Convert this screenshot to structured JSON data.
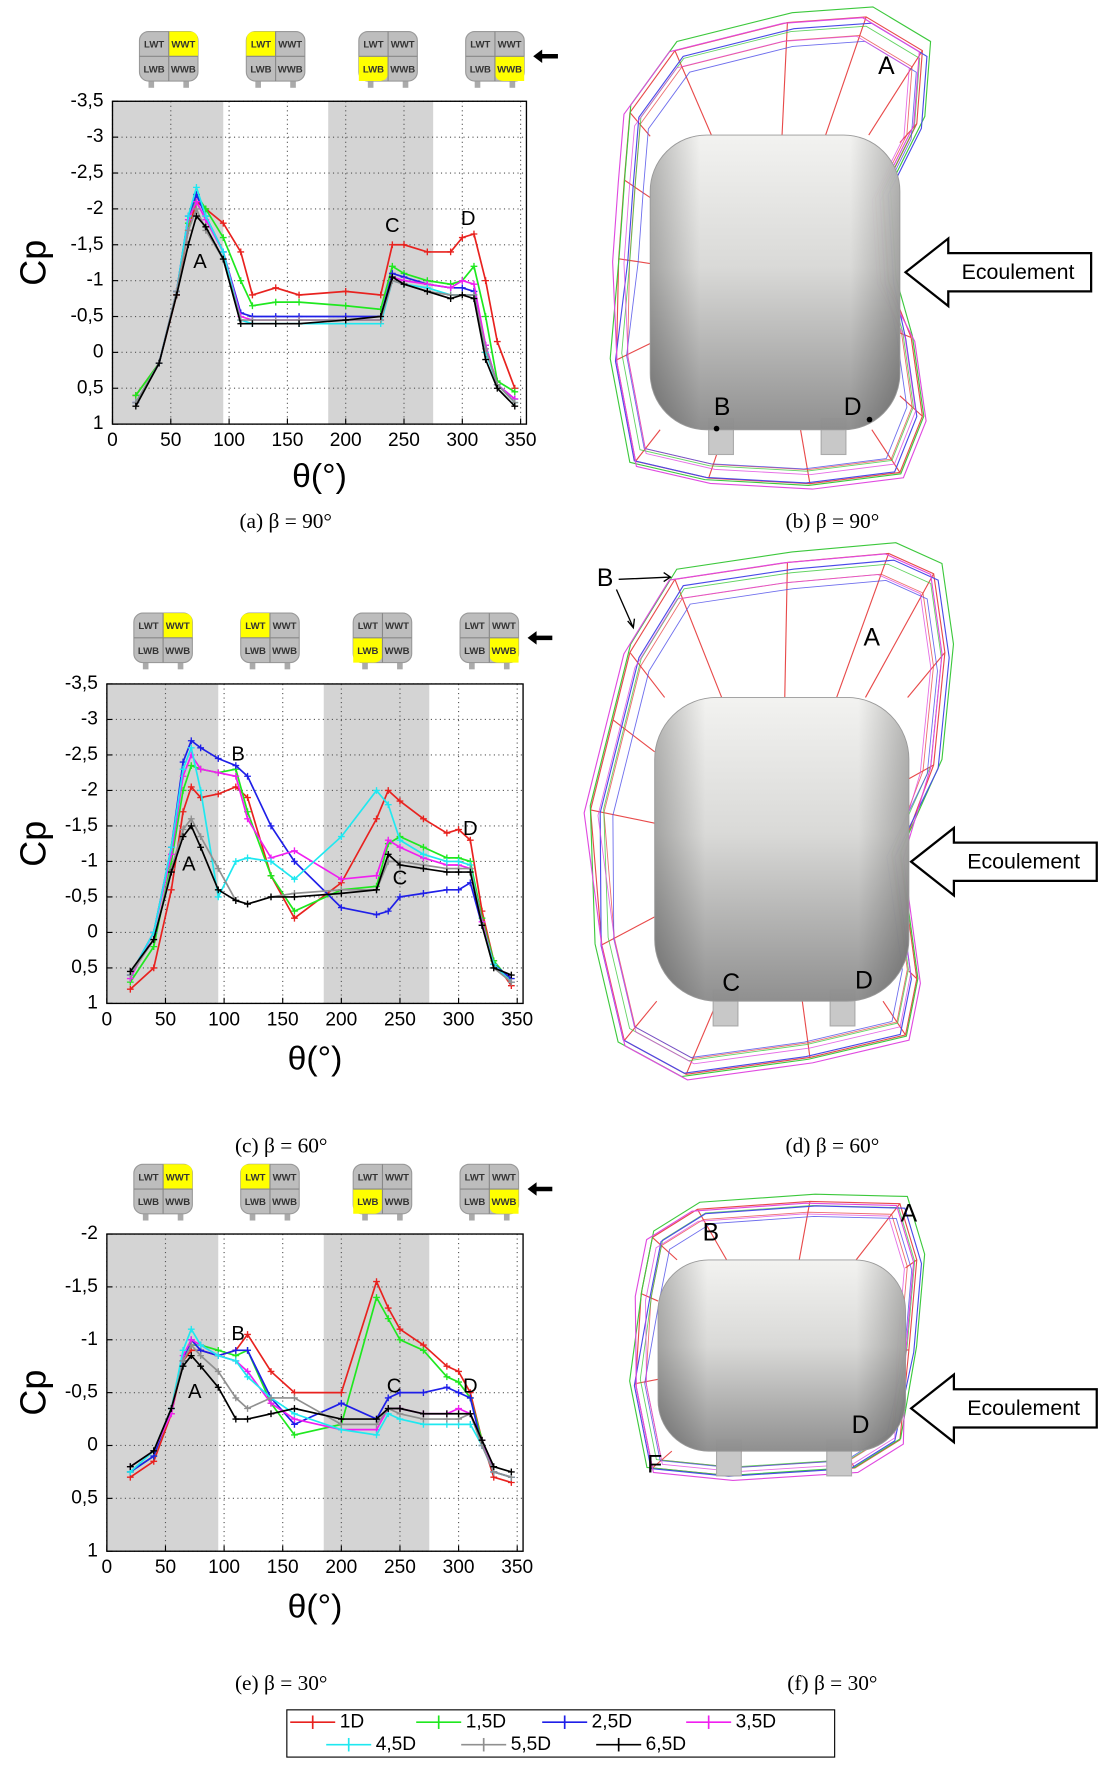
{
  "chart_data": [
    {
      "type": "line",
      "caption": "(a) β = 90°",
      "x_label": "θ(°)",
      "y_label": "Cp",
      "xlim": [
        0,
        355
      ],
      "ylim": [
        1,
        -3.5
      ],
      "xticks": [
        0,
        50,
        100,
        150,
        200,
        250,
        300,
        350
      ],
      "yticks": [
        {
          "value": -3.5,
          "label": "-3,5"
        },
        -3,
        {
          "value": -2.5,
          "label": "-2,5"
        },
        -2,
        {
          "value": -1.5,
          "label": "-1,5"
        },
        -1,
        {
          "value": -0.5,
          "label": "-0,5"
        },
        0,
        {
          "value": 0.5,
          "label": "0,5"
        },
        1
      ],
      "grid": true,
      "shaded": [
        [
          0,
          95
        ],
        [
          185,
          275
        ]
      ],
      "icon_highlight": [
        1,
        0,
        2,
        3
      ],
      "x": [
        20,
        40,
        55,
        65,
        72,
        80,
        95,
        110,
        120,
        140,
        160,
        200,
        230,
        240,
        250,
        270,
        290,
        300,
        310,
        320,
        330,
        345
      ],
      "series": [
        {
          "values": [
            0.6,
            0.15,
            -0.8,
            -1.7,
            -2.1,
            -2.0,
            -1.8,
            -1.4,
            -0.8,
            -0.9,
            -0.8,
            -0.85,
            -0.8,
            -1.5,
            -1.5,
            -1.4,
            -1.4,
            -1.6,
            -1.65,
            -1.0,
            -0.15,
            0.5
          ]
        },
        {
          "values": [
            0.6,
            0.15,
            -0.85,
            -1.8,
            -2.2,
            -2.0,
            -1.6,
            -1.0,
            -0.65,
            -0.7,
            -0.7,
            -0.65,
            -0.6,
            -1.2,
            -1.1,
            -1.0,
            -0.95,
            -1.0,
            -1.2,
            -0.5,
            0.4,
            0.55
          ]
        },
        {
          "values": [
            0.7,
            0.15,
            -0.85,
            -1.9,
            -2.2,
            -1.9,
            -1.4,
            -0.55,
            -0.5,
            -0.5,
            -0.5,
            -0.5,
            -0.5,
            -1.1,
            -1.05,
            -0.95,
            -0.9,
            -0.9,
            -0.85,
            -0.1,
            0.45,
            0.65
          ]
        },
        {
          "values": [
            0.7,
            0.15,
            -0.85,
            -1.85,
            -2.1,
            -1.85,
            -1.4,
            -0.5,
            -0.45,
            -0.45,
            -0.45,
            -0.45,
            -0.45,
            -1.05,
            -1.0,
            -0.95,
            -0.9,
            -1.0,
            -0.95,
            -0.1,
            0.45,
            0.65
          ]
        },
        {
          "values": [
            0.7,
            0.15,
            -0.85,
            -1.9,
            -2.3,
            -1.9,
            -1.4,
            -0.45,
            -0.4,
            -0.4,
            -0.4,
            -0.4,
            -0.4,
            -1.0,
            -0.95,
            -0.9,
            -0.8,
            -0.8,
            -0.8,
            0.0,
            0.45,
            0.7
          ]
        },
        {
          "values": [
            0.7,
            0.15,
            -0.85,
            -1.7,
            -2.0,
            -1.7,
            -1.3,
            -0.45,
            -0.45,
            -0.45,
            -0.45,
            -0.45,
            -0.45,
            -1.0,
            -0.95,
            -0.85,
            -0.8,
            -0.8,
            -0.8,
            -0.05,
            0.45,
            0.7
          ]
        },
        {
          "values": [
            0.75,
            0.15,
            -0.8,
            -1.5,
            -1.9,
            -1.75,
            -1.3,
            -0.4,
            -0.4,
            -0.4,
            -0.4,
            -0.45,
            -0.5,
            -1.05,
            -0.95,
            -0.85,
            -0.75,
            -0.8,
            -0.75,
            0.1,
            0.5,
            0.75
          ]
        }
      ],
      "annotations": [
        {
          "text": "A",
          "x": 75,
          "y": -1.25
        },
        {
          "text": "C",
          "x": 240,
          "y": -1.75
        },
        {
          "text": "D",
          "x": 305,
          "y": -1.85
        }
      ]
    },
    {
      "type": "line",
      "caption": "(c) β = 60°",
      "x_label": "θ(°)",
      "y_label": "Cp",
      "xlim": [
        0,
        355
      ],
      "ylim": [
        1,
        -3.5
      ],
      "xticks": [
        0,
        50,
        100,
        150,
        200,
        250,
        300,
        350
      ],
      "yticks": [
        {
          "value": -3.5,
          "label": "-3,5"
        },
        -3,
        {
          "value": -2.5,
          "label": "-2,5"
        },
        -2,
        {
          "value": -1.5,
          "label": "-1,5"
        },
        -1,
        {
          "value": -0.5,
          "label": "-0,5"
        },
        0,
        {
          "value": 0.5,
          "label": "0,5"
        },
        1
      ],
      "grid": true,
      "shaded": [
        [
          0,
          95
        ],
        [
          185,
          275
        ]
      ],
      "icon_highlight": [
        1,
        0,
        2,
        3
      ],
      "x": [
        20,
        40,
        55,
        65,
        72,
        80,
        95,
        110,
        120,
        140,
        160,
        200,
        230,
        240,
        250,
        270,
        290,
        300,
        310,
        320,
        330,
        345
      ],
      "series": [
        {
          "values": [
            0.8,
            0.5,
            -0.6,
            -1.7,
            -2.05,
            -1.9,
            -1.95,
            -2.05,
            -1.9,
            -0.8,
            -0.2,
            -0.7,
            -1.6,
            -2.0,
            -1.85,
            -1.6,
            -1.4,
            -1.45,
            -1.3,
            -0.3,
            0.4,
            0.75
          ]
        },
        {
          "values": [
            0.7,
            0.2,
            -1.0,
            -2.0,
            -2.35,
            -2.3,
            -2.25,
            -2.3,
            -1.7,
            -0.8,
            -0.3,
            -0.6,
            -0.65,
            -1.25,
            -1.35,
            -1.2,
            -1.05,
            -1.05,
            -1.0,
            -0.2,
            0.4,
            0.7
          ]
        },
        {
          "values": [
            0.6,
            0.0,
            -1.2,
            -2.4,
            -2.7,
            -2.6,
            -2.45,
            -2.35,
            -2.2,
            -1.5,
            -1.0,
            -0.35,
            -0.25,
            -0.3,
            -0.5,
            -0.55,
            -0.6,
            -0.6,
            -0.7,
            -0.1,
            0.45,
            0.65
          ]
        },
        {
          "values": [
            0.65,
            0.0,
            -1.1,
            -2.2,
            -2.5,
            -2.3,
            -2.25,
            -2.2,
            -1.6,
            -1.05,
            -1.15,
            -0.75,
            -0.8,
            -1.3,
            -1.2,
            -1.05,
            -0.95,
            -0.95,
            -0.9,
            -0.15,
            0.45,
            0.7
          ]
        },
        {
          "values": [
            0.6,
            0.0,
            -1.2,
            -2.3,
            -2.6,
            -2.0,
            -0.5,
            -1.0,
            -1.05,
            -1.0,
            -0.75,
            -1.35,
            -2.0,
            -1.8,
            -1.3,
            -1.1,
            -1.0,
            -1.0,
            -0.95,
            -0.1,
            0.45,
            0.7
          ]
        },
        {
          "values": [
            0.6,
            0.1,
            -0.9,
            -1.45,
            -1.6,
            -1.35,
            -0.9,
            -0.45,
            -0.4,
            -0.5,
            -0.55,
            -0.6,
            -0.6,
            -1.0,
            -1.0,
            -0.95,
            -0.9,
            -0.9,
            -0.9,
            -0.1,
            0.5,
            0.7
          ]
        },
        {
          "values": [
            0.55,
            0.1,
            -0.85,
            -1.35,
            -1.5,
            -1.2,
            -0.6,
            -0.45,
            -0.4,
            -0.5,
            -0.5,
            -0.55,
            -0.6,
            -1.1,
            -0.95,
            -0.9,
            -0.85,
            -0.85,
            -0.85,
            -0.1,
            0.5,
            0.6
          ]
        }
      ],
      "annotations": [
        {
          "text": "A",
          "x": 70,
          "y": -0.95
        },
        {
          "text": "B",
          "x": 112,
          "y": -2.5
        },
        {
          "text": "C",
          "x": 250,
          "y": -0.75
        },
        {
          "text": "D",
          "x": 310,
          "y": -1.45
        }
      ]
    },
    {
      "type": "line",
      "caption": "(e) β = 30°",
      "x_label": "θ(°)",
      "y_label": "Cp",
      "xlim": [
        0,
        355
      ],
      "ylim": [
        1,
        -2
      ],
      "xticks": [
        0,
        50,
        100,
        150,
        200,
        250,
        300,
        350
      ],
      "yticks": [
        -2,
        {
          "value": -1.5,
          "label": "-1,5"
        },
        -1,
        {
          "value": -0.5,
          "label": "-0,5"
        },
        0,
        {
          "value": 0.5,
          "label": "0,5"
        },
        1
      ],
      "grid": true,
      "shaded": [
        [
          0,
          95
        ],
        [
          185,
          275
        ]
      ],
      "icon_highlight": [
        1,
        0,
        2,
        3
      ],
      "x": [
        20,
        40,
        55,
        65,
        72,
        80,
        95,
        110,
        120,
        140,
        160,
        200,
        230,
        240,
        250,
        270,
        290,
        300,
        310,
        320,
        330,
        345
      ],
      "series": [
        {
          "values": [
            0.3,
            0.15,
            -0.3,
            -0.8,
            -0.9,
            -0.9,
            -0.85,
            -0.9,
            -1.05,
            -0.7,
            -0.5,
            -0.5,
            -1.55,
            -1.3,
            -1.1,
            -0.95,
            -0.75,
            -0.7,
            -0.5,
            -0.05,
            0.3,
            0.35
          ]
        },
        {
          "values": [
            0.25,
            0.1,
            -0.35,
            -0.8,
            -0.95,
            -0.95,
            -0.9,
            -0.85,
            -0.9,
            -0.4,
            -0.1,
            -0.2,
            -1.4,
            -1.2,
            -1.0,
            -0.9,
            -0.65,
            -0.6,
            -0.45,
            -0.05,
            0.25,
            0.3
          ]
        },
        {
          "values": [
            0.25,
            0.1,
            -0.35,
            -0.8,
            -1.0,
            -0.9,
            -0.85,
            -0.9,
            -0.9,
            -0.45,
            -0.2,
            -0.4,
            -0.25,
            -0.45,
            -0.5,
            -0.5,
            -0.55,
            -0.5,
            -0.45,
            0.0,
            0.25,
            0.3
          ]
        },
        {
          "values": [
            0.2,
            0.05,
            -0.3,
            -0.85,
            -1.0,
            -0.95,
            -0.85,
            -0.8,
            -0.7,
            -0.4,
            -0.25,
            -0.15,
            -0.15,
            -0.35,
            -0.35,
            -0.3,
            -0.3,
            -0.35,
            -0.3,
            -0.05,
            0.25,
            0.3
          ]
        },
        {
          "values": [
            0.25,
            0.05,
            -0.35,
            -0.9,
            -1.1,
            -0.95,
            -0.85,
            -0.8,
            -0.65,
            -0.45,
            -0.3,
            -0.15,
            -0.1,
            -0.3,
            -0.25,
            -0.2,
            -0.2,
            -0.2,
            -0.2,
            0.0,
            0.25,
            0.3
          ]
        },
        {
          "values": [
            0.2,
            0.05,
            -0.35,
            -0.8,
            -0.95,
            -0.85,
            -0.7,
            -0.45,
            -0.35,
            -0.45,
            -0.45,
            -0.2,
            -0.2,
            -0.35,
            -0.3,
            -0.25,
            -0.25,
            -0.25,
            -0.3,
            0.0,
            0.25,
            0.3
          ]
        },
        {
          "values": [
            0.2,
            0.05,
            -0.35,
            -0.75,
            -0.85,
            -0.75,
            -0.55,
            -0.25,
            -0.25,
            -0.3,
            -0.35,
            -0.25,
            -0.25,
            -0.35,
            -0.35,
            -0.3,
            -0.3,
            -0.3,
            -0.3,
            -0.05,
            0.2,
            0.25
          ]
        }
      ],
      "annotations": [
        {
          "text": "A",
          "x": 75,
          "y": -0.5
        },
        {
          "text": "B",
          "x": 112,
          "y": -1.05
        },
        {
          "text": "C",
          "x": 245,
          "y": -0.55
        },
        {
          "text": "D",
          "x": 310,
          "y": -0.55
        }
      ]
    }
  ],
  "legend": {
    "names": [
      "1D",
      "1,5D",
      "2,5D",
      "3,5D",
      "4,5D",
      "5,5D",
      "6,5D"
    ],
    "colors": [
      "#e8221f",
      "#1fe81f",
      "#1f1fe8",
      "#f01ff0",
      "#1fe8f0",
      "#909090",
      "#000000"
    ]
  },
  "quadrant_labels": [
    "LWT",
    "WWT",
    "LWB",
    "WWB"
  ],
  "figures": [
    {
      "caption": "(b) β = 90°",
      "flow": "Ecoulement",
      "labels": [
        "A",
        "B",
        "D"
      ]
    },
    {
      "caption": "(d) β = 60°",
      "flow": "Ecoulement",
      "labels": [
        "A",
        "B",
        "C",
        "D"
      ]
    },
    {
      "caption": "(f) β = 30°",
      "flow": "Ecoulement",
      "labels": [
        "A",
        "B",
        "D",
        "F"
      ]
    }
  ]
}
